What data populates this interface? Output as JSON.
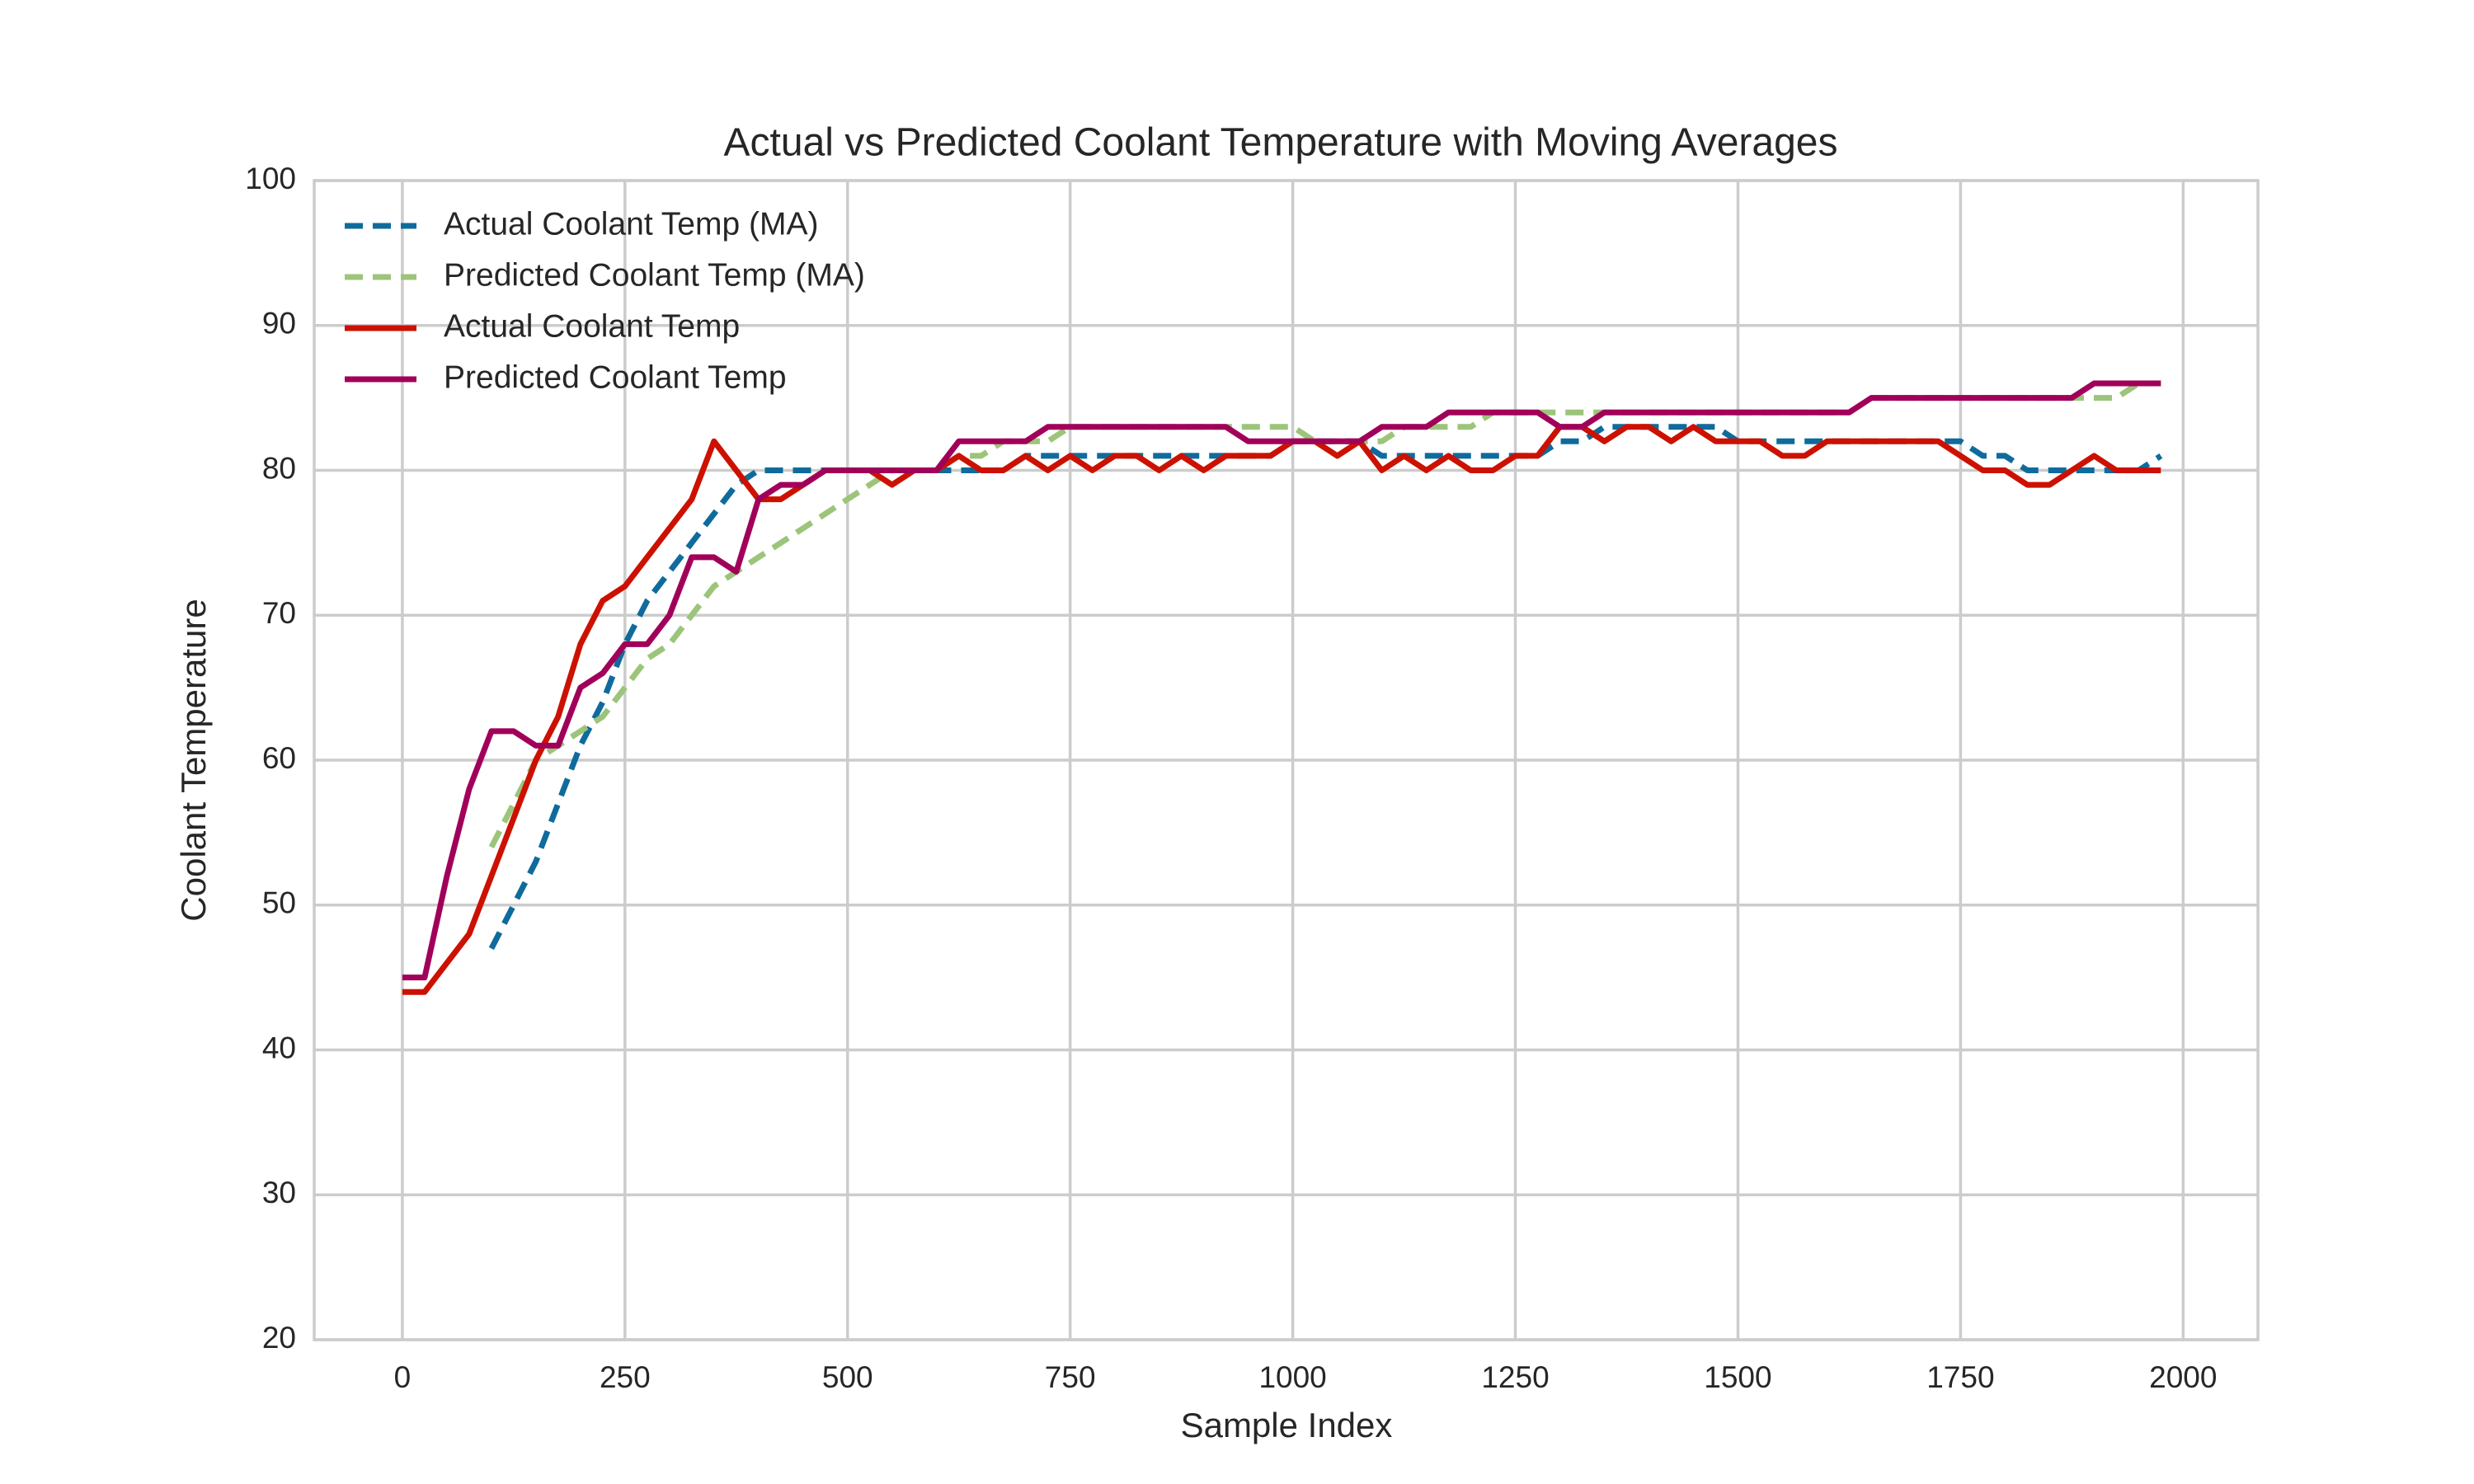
{
  "chart_data": {
    "type": "line",
    "title": "Actual vs Predicted Coolant Temperature with Moving Averages",
    "xlabel": "Sample Index",
    "ylabel": "Coolant Temperature",
    "x": [
      0,
      25,
      50,
      75,
      100,
      125,
      150,
      175,
      200,
      225,
      250,
      275,
      300,
      325,
      350,
      375,
      400,
      425,
      450,
      475,
      500,
      525,
      550,
      575,
      600,
      625,
      650,
      675,
      700,
      725,
      750,
      775,
      800,
      825,
      850,
      875,
      900,
      925,
      950,
      975,
      1000,
      1025,
      1050,
      1075,
      1100,
      1125,
      1150,
      1175,
      1200,
      1225,
      1250,
      1275,
      1300,
      1325,
      1350,
      1375,
      1400,
      1425,
      1450,
      1475,
      1500,
      1525,
      1550,
      1575,
      1600,
      1625,
      1650,
      1675,
      1700,
      1725,
      1750,
      1775,
      1800,
      1825,
      1850,
      1875,
      1900,
      1925,
      1950,
      1975
    ],
    "series": [
      {
        "name": "Actual Coolant Temp (MA)",
        "color": "#0f6b9c",
        "dashed": true,
        "values": [
          null,
          null,
          null,
          null,
          47,
          50,
          53,
          57,
          61,
          64,
          68,
          71,
          73,
          75,
          77,
          79,
          80,
          80,
          80,
          80,
          80,
          80,
          80,
          80,
          80,
          80,
          80,
          80,
          81,
          81,
          81,
          81,
          81,
          81,
          81,
          81,
          81,
          81,
          81,
          81,
          82,
          82,
          82,
          82,
          81,
          81,
          81,
          81,
          81,
          81,
          81,
          81,
          82,
          82,
          83,
          83,
          83,
          83,
          83,
          83,
          82,
          82,
          82,
          82,
          82,
          82,
          82,
          82,
          82,
          82,
          82,
          81,
          81,
          80,
          80,
          80,
          80,
          80,
          80,
          81
        ]
      },
      {
        "name": "Predicted Coolant Temp (MA)",
        "color": "#9cc47a",
        "dashed": true,
        "values": [
          null,
          null,
          null,
          null,
          54,
          57,
          60,
          61,
          62,
          63,
          65,
          67,
          68,
          70,
          72,
          73,
          74,
          75,
          76,
          77,
          78,
          79,
          80,
          80,
          80,
          81,
          81,
          82,
          82,
          82,
          83,
          83,
          83,
          83,
          83,
          83,
          83,
          83,
          83,
          83,
          83,
          82,
          82,
          82,
          82,
          83,
          83,
          83,
          83,
          84,
          84,
          84,
          84,
          84,
          84,
          84,
          84,
          84,
          84,
          84,
          84,
          84,
          84,
          84,
          84,
          84,
          85,
          85,
          85,
          85,
          85,
          85,
          85,
          85,
          85,
          85,
          85,
          85,
          86,
          86
        ]
      },
      {
        "name": "Actual Coolant Temp",
        "color": "#cc1100",
        "dashed": false,
        "values": [
          44,
          44,
          46,
          48,
          52,
          56,
          60,
          63,
          68,
          71,
          72,
          74,
          76,
          78,
          82,
          80,
          78,
          78,
          79,
          80,
          80,
          80,
          79,
          80,
          80,
          81,
          80,
          80,
          81,
          80,
          81,
          80,
          81,
          81,
          80,
          81,
          80,
          81,
          81,
          81,
          82,
          82,
          81,
          82,
          80,
          81,
          80,
          81,
          80,
          80,
          81,
          81,
          83,
          83,
          82,
          83,
          83,
          82,
          83,
          82,
          82,
          82,
          81,
          81,
          82,
          82,
          82,
          82,
          82,
          82,
          81,
          80,
          80,
          79,
          79,
          80,
          81,
          80,
          80,
          80
        ]
      },
      {
        "name": "Predicted Coolant Temp",
        "color": "#a1005a",
        "dashed": false,
        "values": [
          45,
          45,
          52,
          58,
          62,
          62,
          61,
          61,
          65,
          66,
          68,
          68,
          70,
          74,
          74,
          73,
          78,
          79,
          79,
          80,
          80,
          80,
          80,
          80,
          80,
          82,
          82,
          82,
          82,
          83,
          83,
          83,
          83,
          83,
          83,
          83,
          83,
          83,
          82,
          82,
          82,
          82,
          82,
          82,
          83,
          83,
          83,
          84,
          84,
          84,
          84,
          84,
          83,
          83,
          84,
          84,
          84,
          84,
          84,
          84,
          84,
          84,
          84,
          84,
          84,
          84,
          85,
          85,
          85,
          85,
          85,
          85,
          85,
          85,
          85,
          85,
          86,
          86,
          86,
          86
        ]
      }
    ],
    "xlim": [
      -99,
      2084
    ],
    "ylim": [
      20,
      100
    ],
    "xticks": [
      0,
      250,
      500,
      750,
      1000,
      1250,
      1500,
      1750,
      2000
    ],
    "yticks": [
      20,
      30,
      40,
      50,
      60,
      70,
      80,
      90,
      100
    ],
    "grid": true,
    "legend": "upper left"
  }
}
